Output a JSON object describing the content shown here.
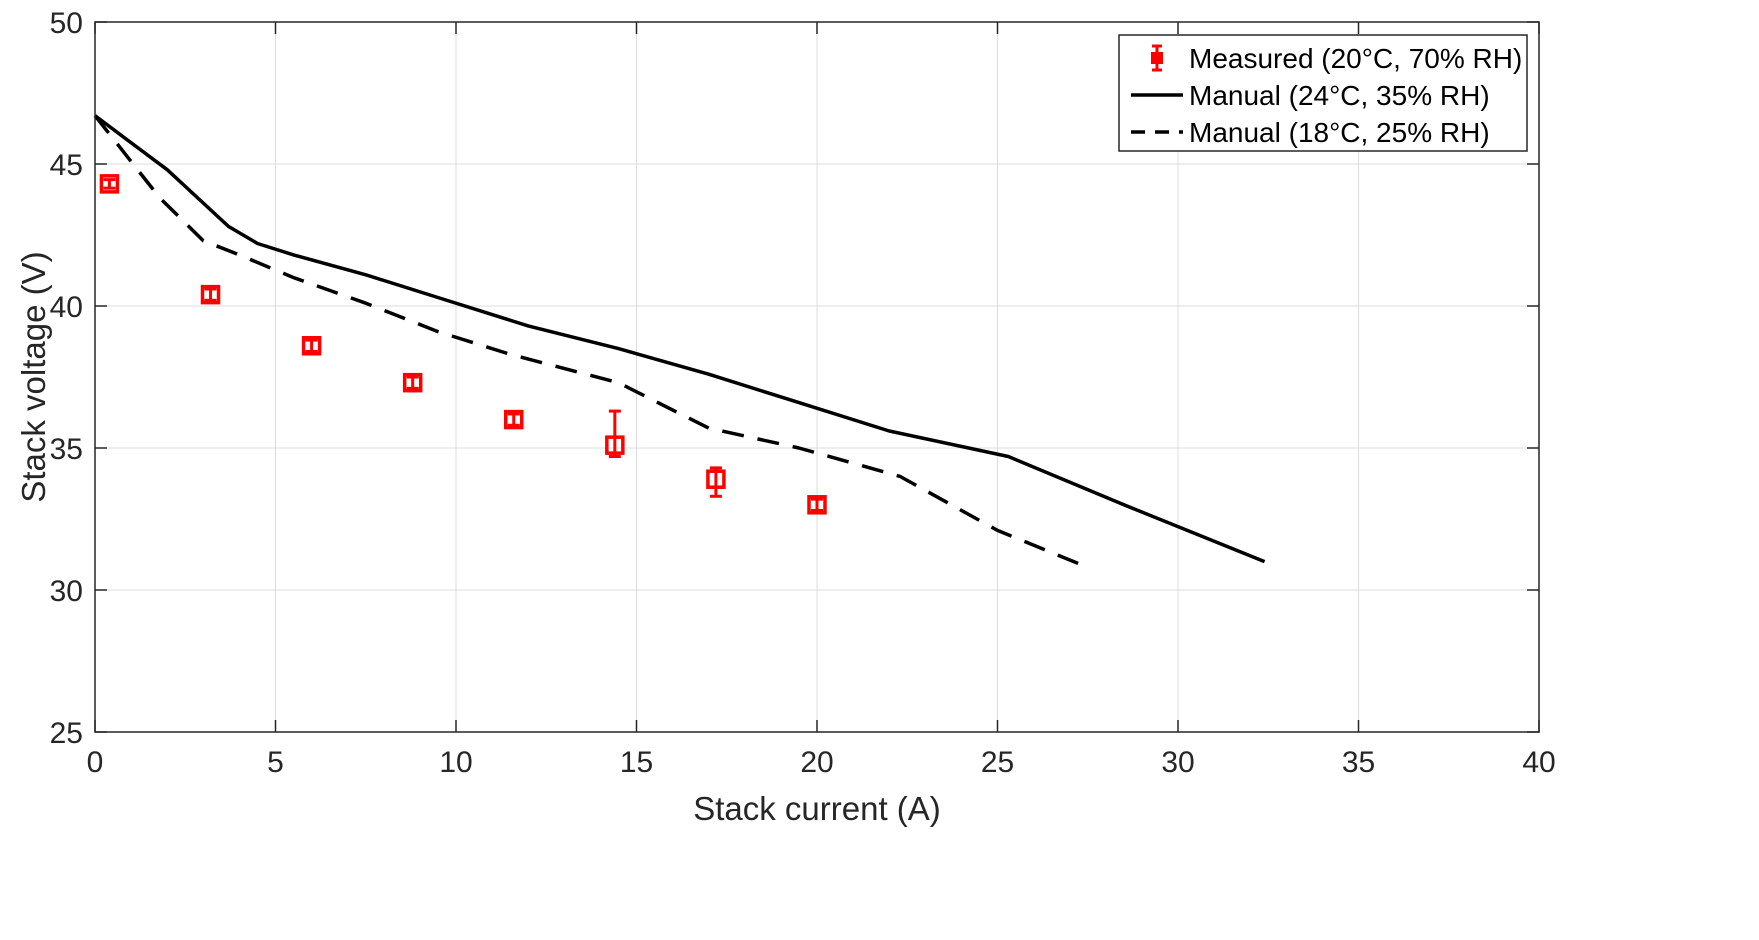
{
  "chart_data": {
    "type": "line",
    "title": "",
    "xlabel": "Stack current (A)",
    "ylabel": "Stack voltage (V)",
    "xlim": [
      0,
      40
    ],
    "ylim": [
      25,
      50
    ],
    "xticks": [
      "0",
      "5",
      "10",
      "15",
      "20",
      "25",
      "30",
      "35",
      "40"
    ],
    "yticks": [
      "25",
      "30",
      "35",
      "40",
      "45",
      "50"
    ],
    "grid": true,
    "legend_position": "top-right",
    "series": [
      {
        "name": "Measured (20°C, 70% RH)",
        "kind": "errorbar-markers",
        "marker": "square",
        "color": "#ff0000",
        "x": [
          0.4,
          3.2,
          6.0,
          8.8,
          11.6,
          14.4,
          17.2,
          20.0
        ],
        "y": [
          44.3,
          40.4,
          38.6,
          37.3,
          36.0,
          35.1,
          33.9,
          33.0
        ],
        "err_low": [
          0.15,
          0.2,
          0.2,
          0.2,
          0.2,
          0.4,
          0.6,
          0.2
        ],
        "err_high": [
          0.15,
          0.2,
          0.2,
          0.2,
          0.2,
          1.2,
          0.4,
          0.2
        ]
      },
      {
        "name": "Manual (24°C, 35% RH)",
        "kind": "line",
        "dash": "solid",
        "color": "#000000",
        "x": [
          0.0,
          2.0,
          3.7,
          4.5,
          5.5,
          7.5,
          9.5,
          12.0,
          14.5,
          17.0,
          19.5,
          22.0,
          25.3,
          28.5,
          32.4
        ],
        "y": [
          46.7,
          44.8,
          42.8,
          42.2,
          41.8,
          41.1,
          40.3,
          39.3,
          38.5,
          37.6,
          36.6,
          35.6,
          34.7,
          33.0,
          31.0
        ]
      },
      {
        "name": "Manual (18°C, 25% RH)",
        "kind": "line",
        "dash": "dashed",
        "color": "#000000",
        "x": [
          0.0,
          1.8,
          3.0,
          4.0,
          5.5,
          7.5,
          9.5,
          11.5,
          14.5,
          17.0,
          19.5,
          22.3,
          25.0,
          27.3
        ],
        "y": [
          46.7,
          43.8,
          42.3,
          41.8,
          41.0,
          40.1,
          39.1,
          38.3,
          37.3,
          35.7,
          35.0,
          34.0,
          32.1,
          30.9
        ]
      }
    ]
  }
}
